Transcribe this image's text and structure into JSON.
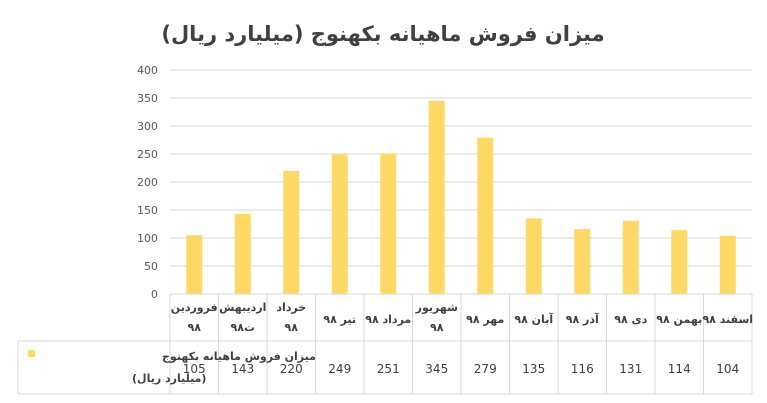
{
  "chart_data": {
    "type": "bar",
    "title": "میزان فروش ماهیانه بکهنوج (میلیارد ریال)",
    "categories": [
      [
        "فروردین",
        "۹۸"
      ],
      [
        "اردیبهش",
        "ت۹۸"
      ],
      [
        "خرداد",
        "۹۸"
      ],
      [
        "تیر ۹۸"
      ],
      [
        "مرداد ۹۸"
      ],
      [
        "شهریور",
        "۹۸"
      ],
      [
        "مهر ۹۸"
      ],
      [
        "آبان ۹۸"
      ],
      [
        "آذر ۹۸"
      ],
      [
        "دی ۹۸"
      ],
      [
        "بهمن ۹۸"
      ],
      [
        "اسفند ۹۸"
      ]
    ],
    "series": [
      {
        "name": [
          "میزان فروش ماهیانه بکهنوج",
          "(میلیارد ریال)"
        ],
        "values": [
          105,
          143,
          220,
          249,
          251,
          345,
          279,
          135,
          116,
          131,
          114,
          104
        ],
        "color": "#FFD966"
      }
    ],
    "yticks": [
      "0",
      "50",
      "100",
      "150",
      "200",
      "250",
      "300",
      "350",
      "400"
    ],
    "ylim": [
      0,
      400
    ],
    "grid": true,
    "legend": "data-table"
  }
}
